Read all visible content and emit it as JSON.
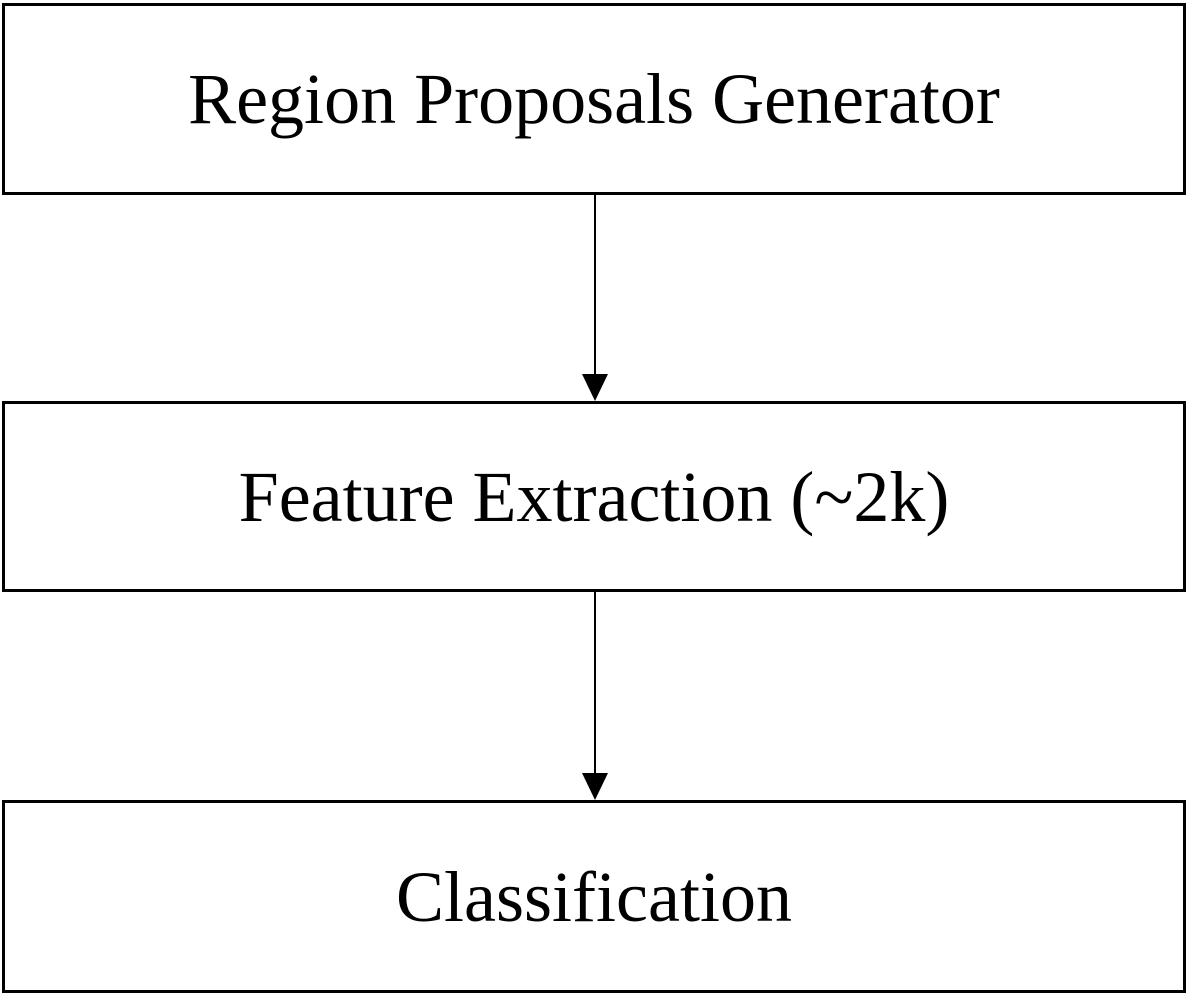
{
  "diagram": {
    "type": "flowchart",
    "direction": "top-to-bottom",
    "steps": [
      {
        "id": "region-proposals",
        "label": "Region Proposals Generator"
      },
      {
        "id": "feature-extraction",
        "label": "Feature Extraction (~2k)"
      },
      {
        "id": "classification",
        "label": "Classification"
      }
    ],
    "edges": [
      {
        "from": "region-proposals",
        "to": "feature-extraction"
      },
      {
        "from": "feature-extraction",
        "to": "classification"
      }
    ],
    "colors": {
      "stroke": "#000000",
      "background": "#ffffff",
      "text": "#000000"
    }
  }
}
